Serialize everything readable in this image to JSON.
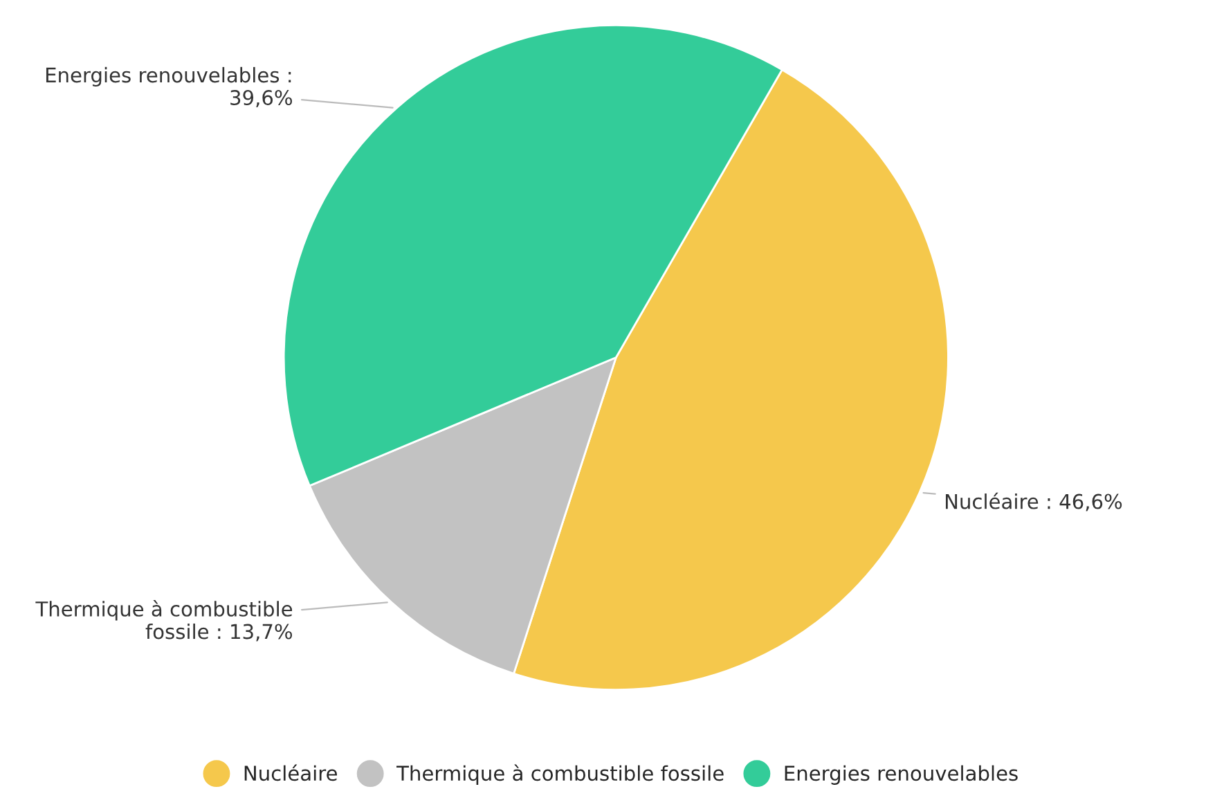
{
  "chart_data": {
    "type": "pie",
    "categories": [
      "Nucléaire",
      "Thermique à combustible fossile",
      "Energies renouvelables"
    ],
    "values": [
      46.6,
      13.7,
      39.6
    ],
    "colors": [
      "#f5c84c",
      "#c2c2c2",
      "#33cc99"
    ],
    "value_labels": [
      "Nucléaire : 46,6%",
      "Thermique à combustible\nfossile : 13,7%",
      "Energies renouvelables :\n39,6%"
    ],
    "legend": "bottom"
  }
}
